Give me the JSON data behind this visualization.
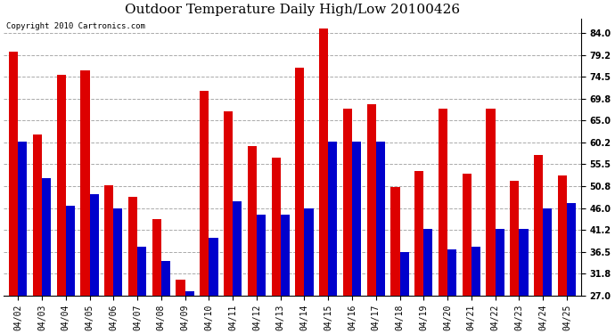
{
  "title": "Outdoor Temperature Daily High/Low 20100426",
  "copyright": "Copyright 2010 Cartronics.com",
  "dates": [
    "04/02",
    "04/03",
    "04/04",
    "04/05",
    "04/06",
    "04/07",
    "04/08",
    "04/09",
    "04/10",
    "04/11",
    "04/12",
    "04/13",
    "04/14",
    "04/15",
    "04/16",
    "04/17",
    "04/18",
    "04/19",
    "04/20",
    "04/21",
    "04/22",
    "04/23",
    "04/24",
    "04/25"
  ],
  "highs": [
    80.0,
    62.0,
    75.0,
    76.0,
    51.0,
    48.5,
    43.5,
    30.5,
    71.5,
    67.0,
    59.5,
    57.0,
    76.5,
    85.0,
    67.5,
    68.5,
    50.5,
    54.0,
    67.5,
    53.5,
    67.5,
    52.0,
    57.5,
    53.0
  ],
  "lows": [
    60.5,
    52.5,
    46.5,
    49.0,
    46.0,
    37.5,
    34.5,
    28.0,
    39.5,
    47.5,
    44.5,
    44.5,
    46.0,
    60.5,
    60.5,
    60.5,
    36.5,
    41.5,
    37.0,
    37.5,
    41.5,
    41.5,
    46.0,
    47.0
  ],
  "high_color": "#dd0000",
  "low_color": "#0000cc",
  "bg_color": "#ffffff",
  "plot_bg_color": "#ffffff",
  "grid_color": "#aaaaaa",
  "baseline": 27.0,
  "ylim_min": 27.0,
  "ylim_max": 87.2,
  "yticks": [
    27.0,
    31.8,
    36.5,
    41.2,
    46.0,
    50.8,
    55.5,
    60.2,
    65.0,
    69.8,
    74.5,
    79.2,
    84.0
  ],
  "bar_width": 0.38,
  "title_fontsize": 11,
  "tick_fontsize": 7,
  "copyright_fontsize": 6.5
}
